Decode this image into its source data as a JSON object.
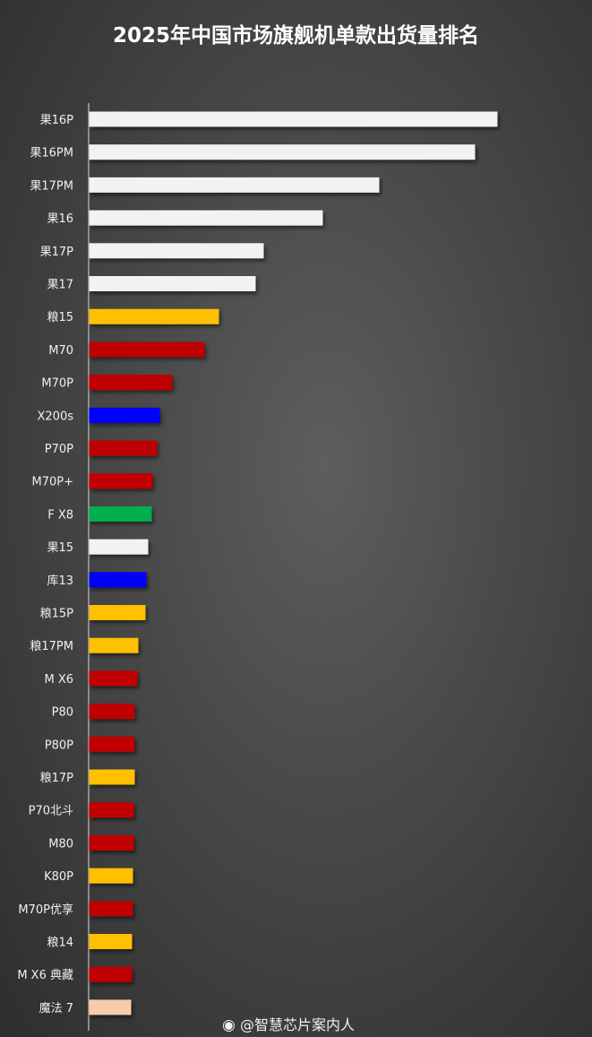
{
  "chart_data": {
    "type": "bar",
    "orientation": "horizontal",
    "title": "2025年中国市场旗舰机单款出货量排名",
    "xlabel": "",
    "ylabel": "",
    "grid": false,
    "value_axis_labels_shown": false,
    "values_note_units": "relative",
    "categories": [
      "果16P",
      "果16PM",
      "果17PM",
      "果16",
      "果17P",
      "果17",
      "粮15",
      "M70",
      "M70P",
      "X200s",
      "P70P",
      "M70P+",
      "F X8",
      "果15",
      "库13",
      "粮15P",
      "粮17PM",
      "M X6",
      "P80",
      "P80P",
      "粮17P",
      "P70北斗",
      "M80",
      "K80P",
      "M70P优享",
      "粮14",
      "M X6 典藏",
      "魔法 7"
    ],
    "values": [
      456,
      431,
      324,
      261,
      195,
      186,
      145,
      129,
      93,
      79,
      76,
      71,
      70,
      66,
      64,
      63,
      55,
      54,
      51,
      51,
      51,
      50,
      50,
      49,
      49,
      48,
      48,
      47
    ],
    "colors": [
      "#f2f2f2",
      "#f2f2f2",
      "#f2f2f2",
      "#f2f2f2",
      "#f2f2f2",
      "#f2f2f2",
      "#ffc000",
      "#c00000",
      "#c00000",
      "#0000ff",
      "#c00000",
      "#c00000",
      "#00b050",
      "#f2f2f2",
      "#0000ff",
      "#ffc000",
      "#ffc000",
      "#c00000",
      "#c00000",
      "#c00000",
      "#ffc000",
      "#c00000",
      "#c00000",
      "#ffc000",
      "#c00000",
      "#ffc000",
      "#c00000",
      "#f8cbad"
    ]
  },
  "watermark": {
    "icon": "weibo-icon",
    "text": "@智慧芯片案内人"
  }
}
